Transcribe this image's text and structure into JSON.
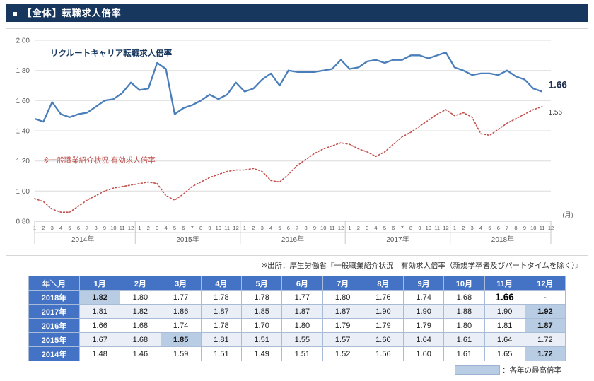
{
  "header": {
    "bullet": "■",
    "title": "【全体】転職求人倍率"
  },
  "chart_data": {
    "type": "line",
    "ylim": [
      0.8,
      2.0
    ],
    "yticks": [
      0.8,
      1.0,
      1.2,
      1.4,
      1.6,
      1.8,
      2.0
    ],
    "x_unit_label": "(月)",
    "years": [
      "2014年",
      "2015年",
      "2016年",
      "2017年",
      "2018年"
    ],
    "months_per_year": 12,
    "grid": true,
    "series": [
      {
        "name": "リクルートキャリア転職求人倍率",
        "color": "#4a7ebb",
        "style": "solid",
        "values": [
          1.48,
          1.46,
          1.59,
          1.51,
          1.49,
          1.51,
          1.52,
          1.56,
          1.6,
          1.61,
          1.65,
          1.72,
          1.67,
          1.68,
          1.85,
          1.81,
          1.51,
          1.55,
          1.57,
          1.6,
          1.64,
          1.61,
          1.64,
          1.72,
          1.66,
          1.68,
          1.74,
          1.78,
          1.7,
          1.8,
          1.79,
          1.79,
          1.79,
          1.8,
          1.81,
          1.87,
          1.81,
          1.82,
          1.86,
          1.87,
          1.85,
          1.87,
          1.87,
          1.9,
          1.9,
          1.88,
          1.9,
          1.92,
          1.82,
          1.8,
          1.77,
          1.78,
          1.78,
          1.77,
          1.8,
          1.76,
          1.74,
          1.68,
          1.66
        ]
      },
      {
        "name": "※一般職業紹介状況 有効求人倍率",
        "color": "#c0504d",
        "style": "dotted",
        "values": [
          0.95,
          0.93,
          0.88,
          0.86,
          0.86,
          0.9,
          0.94,
          0.97,
          1.0,
          1.02,
          1.03,
          1.04,
          1.05,
          1.06,
          1.05,
          0.97,
          0.94,
          0.98,
          1.03,
          1.06,
          1.09,
          1.11,
          1.13,
          1.14,
          1.14,
          1.15,
          1.13,
          1.07,
          1.06,
          1.11,
          1.17,
          1.21,
          1.25,
          1.28,
          1.3,
          1.32,
          1.31,
          1.28,
          1.26,
          1.23,
          1.26,
          1.31,
          1.36,
          1.39,
          1.43,
          1.47,
          1.51,
          1.54,
          1.5,
          1.52,
          1.49,
          1.38,
          1.37,
          1.41,
          1.45,
          1.48,
          1.51,
          1.54,
          1.56
        ]
      }
    ],
    "end_labels": [
      {
        "series": 0,
        "text": "1.66"
      },
      {
        "series": 1,
        "text": "1.56"
      }
    ]
  },
  "source_note": "※出所：厚生労働省『一般職業紹介状況　有効求人倍率（新規学卒者及びパートタイムを除く）』",
  "table": {
    "corner": "年＼月",
    "columns": [
      "1月",
      "2月",
      "3月",
      "4月",
      "5月",
      "6月",
      "7月",
      "8月",
      "9月",
      "10月",
      "11月",
      "12月"
    ],
    "rows": [
      {
        "year": "2018年",
        "values": [
          "1.82",
          "1.80",
          "1.77",
          "1.78",
          "1.78",
          "1.77",
          "1.80",
          "1.76",
          "1.74",
          "1.68",
          "1.66",
          "-"
        ],
        "highlight": [
          0
        ],
        "big": [
          10
        ]
      },
      {
        "year": "2017年",
        "values": [
          "1.81",
          "1.82",
          "1.86",
          "1.87",
          "1.85",
          "1.87",
          "1.87",
          "1.90",
          "1.90",
          "1.88",
          "1.90",
          "1.92"
        ],
        "highlight": [
          11
        ],
        "big": []
      },
      {
        "year": "2016年",
        "values": [
          "1.66",
          "1.68",
          "1.74",
          "1.78",
          "1.70",
          "1.80",
          "1.79",
          "1.79",
          "1.79",
          "1.80",
          "1.81",
          "1.87"
        ],
        "highlight": [
          11
        ],
        "big": []
      },
      {
        "year": "2015年",
        "values": [
          "1.67",
          "1.68",
          "1.85",
          "1.81",
          "1.51",
          "1.55",
          "1.57",
          "1.60",
          "1.64",
          "1.61",
          "1.64",
          "1.72"
        ],
        "highlight": [
          2
        ],
        "big": []
      },
      {
        "year": "2014年",
        "values": [
          "1.48",
          "1.46",
          "1.59",
          "1.51",
          "1.49",
          "1.51",
          "1.52",
          "1.56",
          "1.60",
          "1.61",
          "1.65",
          "1.72"
        ],
        "highlight": [
          11
        ],
        "big": []
      }
    ]
  },
  "legend": {
    "swatch_color": "#b8cce4",
    "label": "：各年の最高倍率"
  }
}
